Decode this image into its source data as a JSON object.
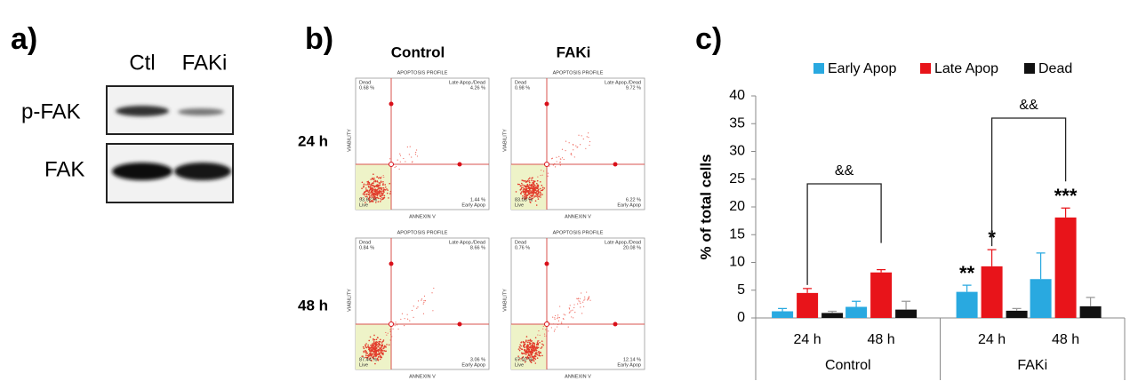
{
  "panel_a": {
    "label": "a)",
    "lanes": [
      "Ctl",
      "FAKi"
    ],
    "rows": [
      "p-FAK",
      "FAK"
    ]
  },
  "panel_b": {
    "label": "b)",
    "columns": [
      "Control",
      "FAKi"
    ],
    "rows": [
      "24 h",
      "48 h"
    ],
    "plots": [
      {
        "title": "APOPTOSIS PROFILE",
        "ul_label": "Dead",
        "ul": "0.68 %",
        "ur_label": "Late Apop./Dead",
        "ur": "4.26 %",
        "ll": "93.62 %",
        "ll_label": "Live",
        "lr": "1.44 %",
        "lr_label": "Early Apop",
        "x_label": "ANNEXIN V",
        "y_label": "VIABILITY"
      },
      {
        "title": "APOPTOSIS PROFILE",
        "ul_label": "Dead",
        "ul": "0.98 %",
        "ur_label": "Late Apop./Dead",
        "ur": "9.72 %",
        "ll": "83.08 %",
        "ll_label": "Live",
        "lr": "6.22 %",
        "lr_label": "Early Apop",
        "x_label": "ANNEXIN V",
        "y_label": "VIABILITY"
      },
      {
        "title": "APOPTOSIS PROFILE",
        "ul_label": "Dead",
        "ul": "0.84 %",
        "ur_label": "Late Apop./Dead",
        "ur": "8.66 %",
        "ll": "87.44 %",
        "ll_label": "Live",
        "lr": "3.06 %",
        "lr_label": "Early Apop",
        "x_label": "ANNEXIN V",
        "y_label": "VIABILITY"
      },
      {
        "title": "APOPTOSIS PROFILE",
        "ul_label": "Dead",
        "ul": "0.76 %",
        "ur_label": "Late Apop./Dead",
        "ur": "20.08 %",
        "ll": "67.02 %",
        "ll_label": "Live",
        "lr": "12.14 %",
        "lr_label": "Early Apop",
        "x_label": "ANNEXIN V",
        "y_label": "VIABILITY"
      }
    ]
  },
  "chart_data": {
    "type": "bar",
    "label": "c)",
    "y_label": "% of total cells",
    "groups": [
      "Control",
      "FAKi"
    ],
    "categories": [
      "24 h",
      "48 h",
      "24 h",
      "48 h"
    ],
    "series": [
      {
        "name": "Early Apop",
        "color": "#29a9e0",
        "values": [
          1.2,
          2.0,
          4.7,
          7.0
        ],
        "errors": [
          0.5,
          1.0,
          1.2,
          4.7
        ],
        "labels": [
          null,
          null,
          "**",
          null
        ]
      },
      {
        "name": "Late Apop",
        "color": "#e8141a",
        "values": [
          4.5,
          8.2,
          9.3,
          18.1
        ],
        "errors": [
          0.8,
          0.5,
          3.0,
          1.7
        ],
        "labels": [
          null,
          null,
          "*",
          "***"
        ]
      },
      {
        "name": "Dead",
        "color": "#111111",
        "values": [
          0.9,
          1.5,
          1.3,
          2.1
        ],
        "errors": [
          0.3,
          1.5,
          0.4,
          1.6
        ],
        "labels": [
          null,
          null,
          null,
          null
        ]
      }
    ],
    "comparisons": [
      "&&",
      "&&"
    ],
    "ylim": [
      0,
      40
    ],
    "yticks": [
      0,
      5,
      10,
      15,
      20,
      25,
      30,
      35,
      40
    ],
    "grid": false
  }
}
